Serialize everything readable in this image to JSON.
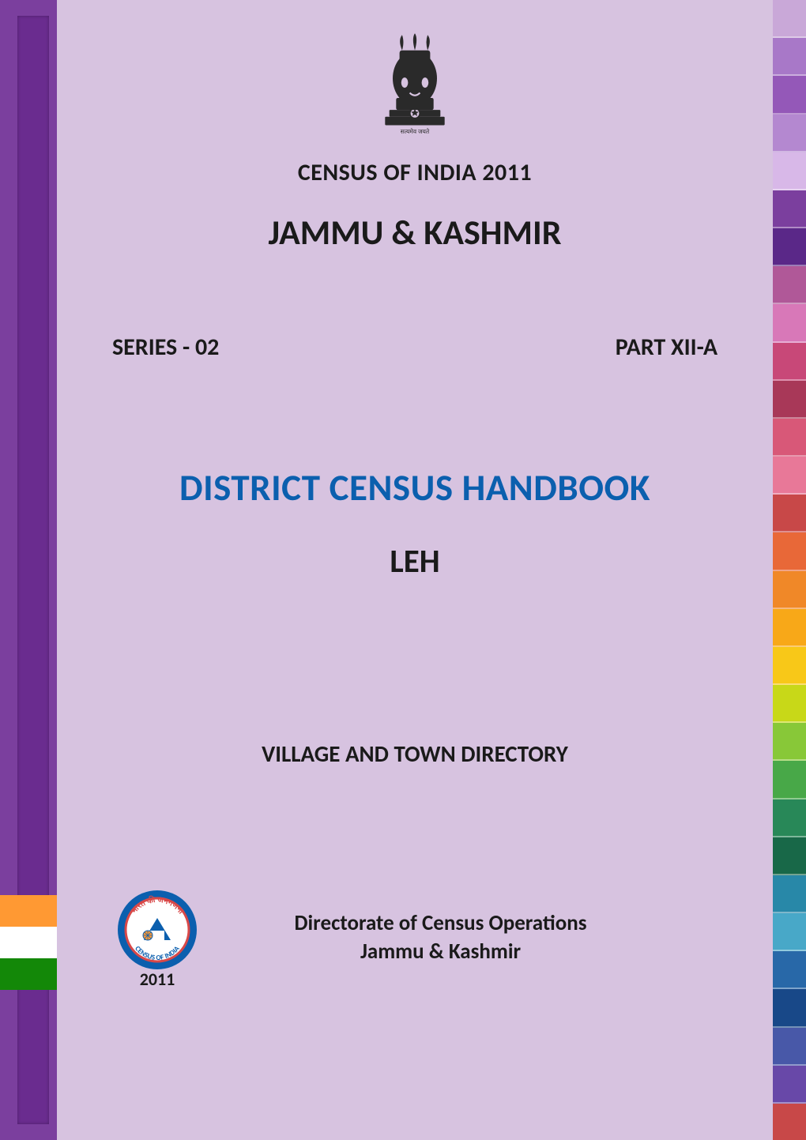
{
  "colors": {
    "page_bg": "#d7c3e0",
    "spine_outer": "#7b3f9e",
    "spine_inner": "#6a2c8f",
    "title_color": "#0b5fae",
    "text_color": "#1a1a1a",
    "flag": [
      "#ff9933",
      "#ffffff",
      "#138808"
    ],
    "emblem": "#2a2a2a",
    "logo_ring": "#0b5fae",
    "logo_text_bg": "#ffffff"
  },
  "header": {
    "census_line": "CENSUS OF INDIA 2011",
    "state": "JAMMU & KASHMIR"
  },
  "meta": {
    "series_label": "SERIES - 02",
    "part_label": "PART XII-A"
  },
  "title": {
    "main": "DISTRICT CENSUS HANDBOOK",
    "district": "LEH"
  },
  "subtitle": "VILLAGE AND TOWN DIRECTORY",
  "footer": {
    "line1": "Directorate of Census Operations",
    "line2": "Jammu & Kashmir",
    "logo_year": "2011"
  },
  "right_tabs": [
    "#c9a8d8",
    "#a878c8",
    "#9458b8",
    "#b488d0",
    "#d8b8e8",
    "#7b3f9e",
    "#5a2888",
    "#b05898",
    "#d878b8",
    "#c84878",
    "#a83858",
    "#d85878",
    "#e87898",
    "#c84848",
    "#e86838",
    "#f08828",
    "#f8a818",
    "#f8c818",
    "#c8d818",
    "#88c838",
    "#48a848",
    "#288858",
    "#186848",
    "#2888a8",
    "#48a8c8",
    "#2868a8",
    "#184888",
    "#4858a8",
    "#6848a8",
    "#c84848"
  ],
  "typography": {
    "heading_small_pt": 30,
    "heading_state_pt": 44,
    "series_pt": 30,
    "title_main_pt": 47,
    "title_district_pt": 41,
    "subtitle_pt": 29,
    "footer_pt": 27
  }
}
